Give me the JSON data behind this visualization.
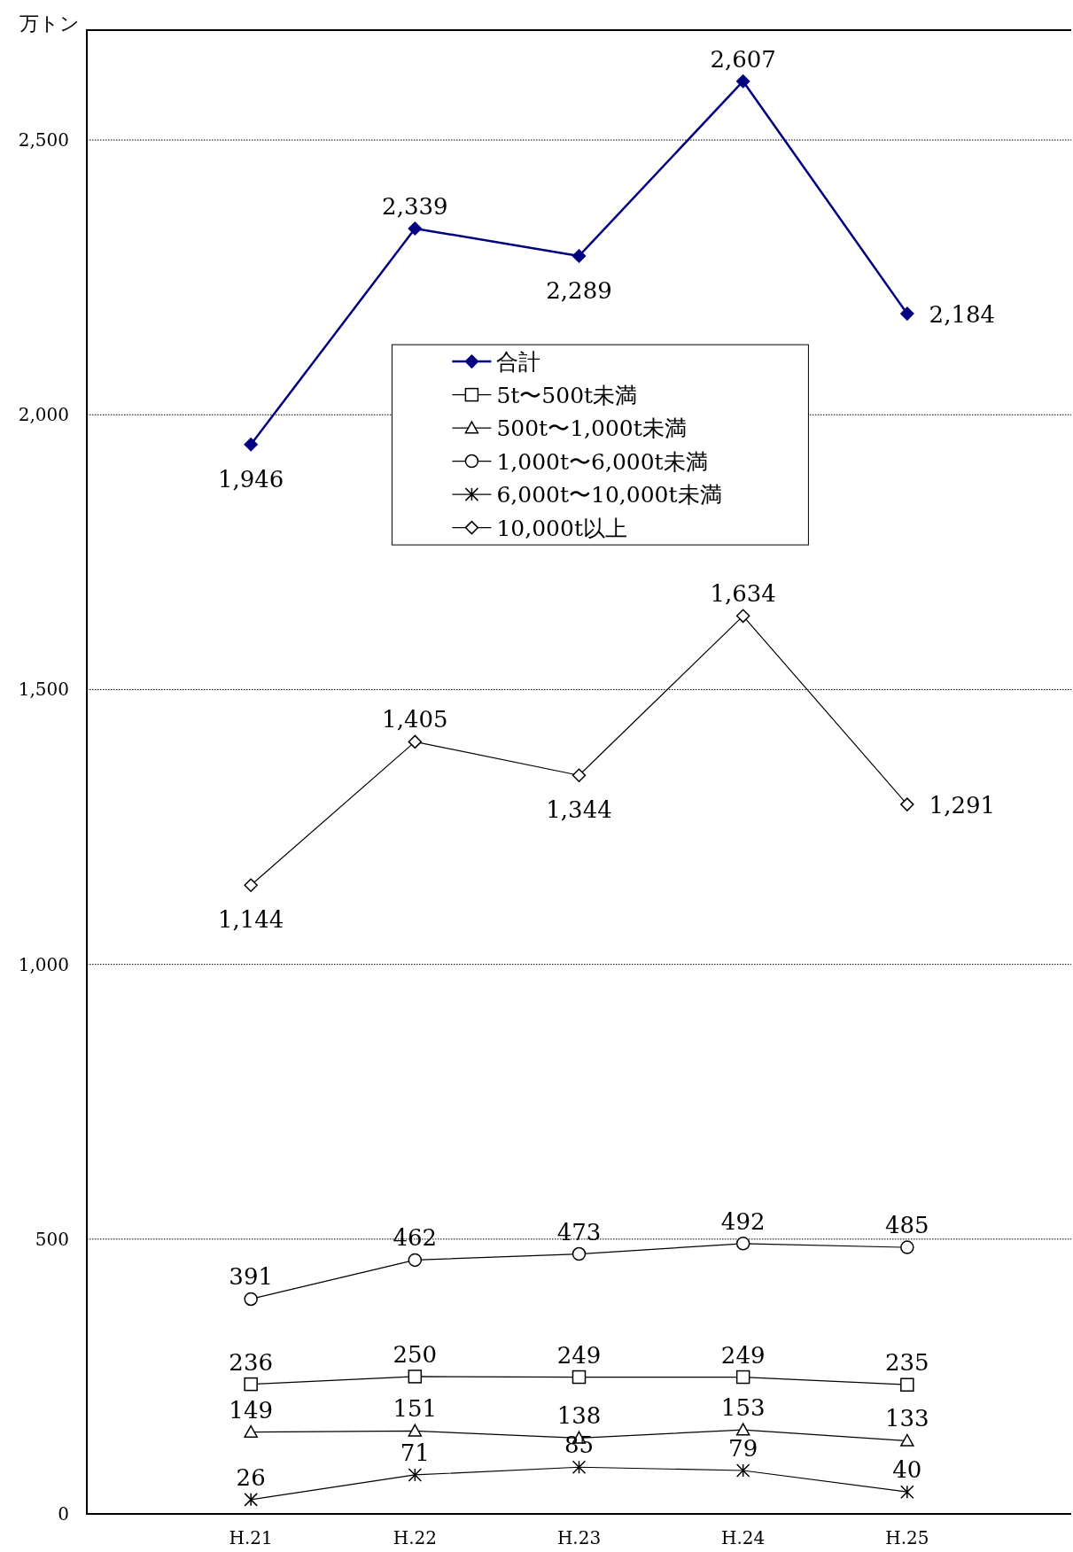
{
  "chart_data": {
    "type": "line",
    "ylabel": "万トン",
    "categories": [
      "H.21",
      "H.22",
      "H.23",
      "H.24",
      "H.25"
    ],
    "ylim": [
      0,
      2700
    ],
    "yticks": [
      {
        "value": 0,
        "label": "0"
      },
      {
        "value": 500,
        "label": "500"
      },
      {
        "value": 1000,
        "label": "1,000"
      },
      {
        "value": 1500,
        "label": "1,500"
      },
      {
        "value": 2000,
        "label": "2,000"
      },
      {
        "value": 2500,
        "label": "2,500"
      }
    ],
    "grid": "y",
    "legend": "top",
    "series": [
      {
        "name": "合計",
        "color": "#000080",
        "marker": "diamond",
        "values": [
          1946,
          2339,
          2289,
          2607,
          2184
        ],
        "value_labels": [
          "1,946",
          "2,339",
          "2,289",
          "2,607",
          "2,184"
        ]
      },
      {
        "name": "5t〜500t未満",
        "color": "#000000",
        "marker": "square",
        "values": [
          236,
          250,
          249,
          249,
          235
        ],
        "value_labels": [
          "236",
          "250",
          "249",
          "249",
          "235"
        ]
      },
      {
        "name": "500t〜1,000t未満",
        "color": "#000000",
        "marker": "triangle",
        "values": [
          149,
          151,
          138,
          153,
          133
        ],
        "value_labels": [
          "149",
          "151",
          "138",
          "153",
          "133"
        ]
      },
      {
        "name": "1,000t〜6,000t未満",
        "color": "#000000",
        "marker": "circle",
        "values": [
          391,
          462,
          473,
          492,
          485
        ],
        "value_labels": [
          "391",
          "462",
          "473",
          "492",
          "485"
        ]
      },
      {
        "name": "6,000t〜10,000t未満",
        "color": "#000000",
        "marker": "cross",
        "values": [
          26,
          71,
          85,
          79,
          40
        ],
        "value_labels": [
          "26",
          "71",
          "85",
          "79",
          "40"
        ]
      },
      {
        "name": "10,000t以上",
        "color": "#000000",
        "marker": "diamond",
        "values": [
          1144,
          1405,
          1344,
          1634,
          1291
        ],
        "value_labels": [
          "1,144",
          "1,405",
          "1,344",
          "1,634",
          "1,291"
        ]
      }
    ]
  }
}
